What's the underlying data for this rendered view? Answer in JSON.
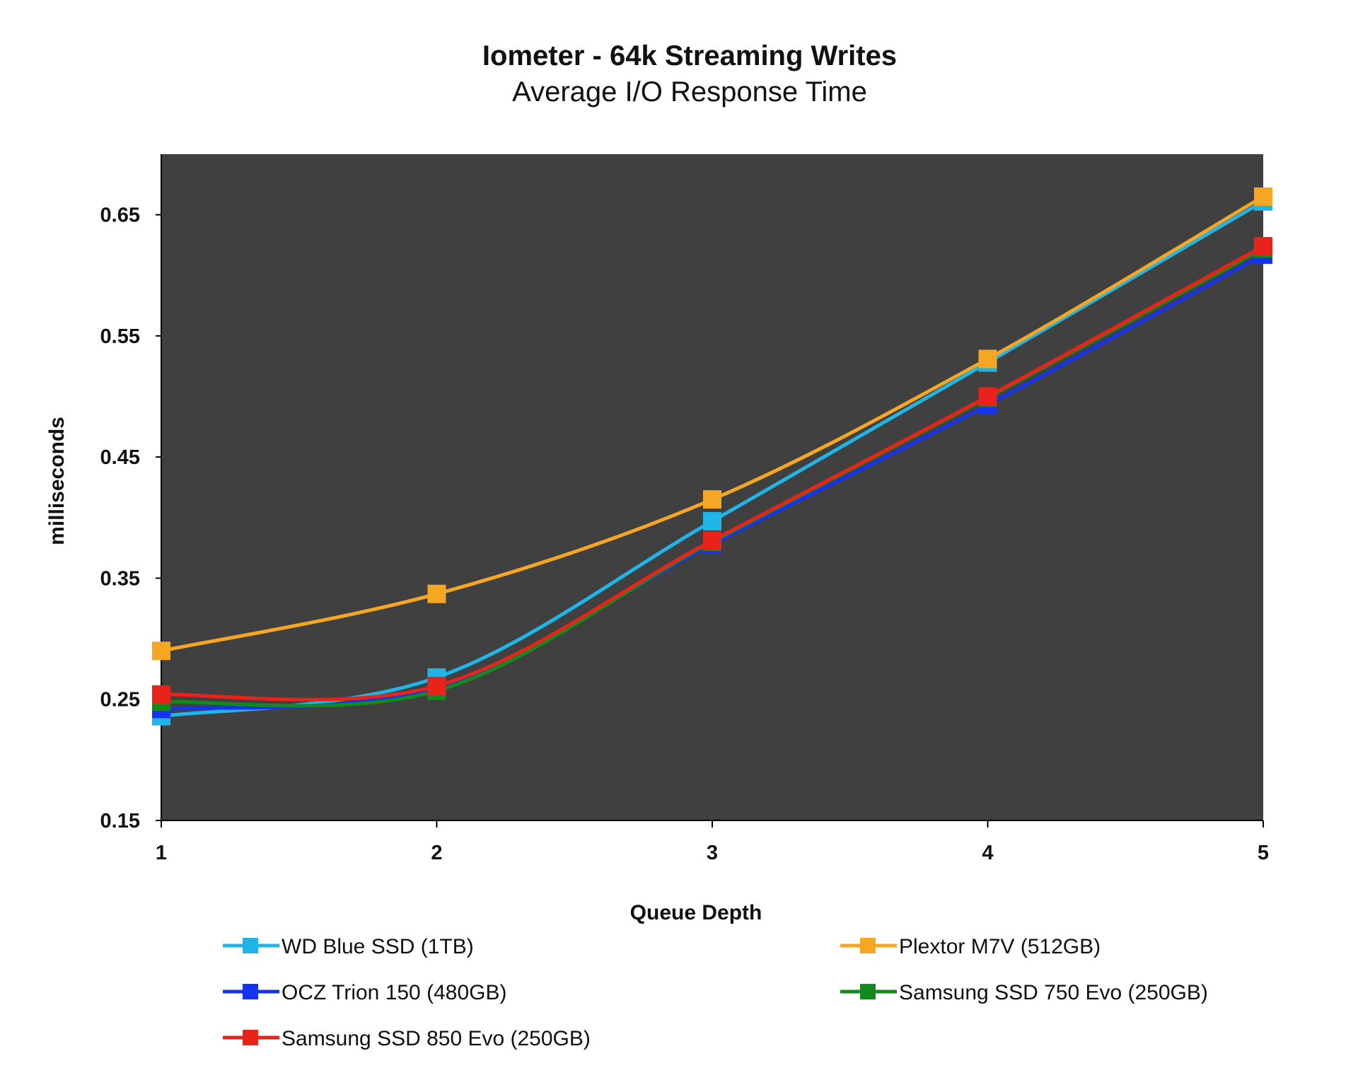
{
  "chart_data": {
    "type": "line",
    "title": "Iometer - 64k Streaming Writes",
    "subtitle": "Average I/O Response Time",
    "xlabel": "Queue Depth",
    "ylabel": "milliseconds",
    "x": [
      1,
      2,
      3,
      4,
      5
    ],
    "x_tick_labels": [
      "1",
      "2",
      "3",
      "4",
      "5"
    ],
    "ylim": [
      0.15,
      0.7
    ],
    "y_ticks": [
      0.15,
      0.25,
      0.35,
      0.45,
      0.55,
      0.65
    ],
    "y_tick_labels": [
      "0.15",
      "0.25",
      "0.35",
      "0.45",
      "0.55",
      "0.65"
    ],
    "plot_background": "#404040",
    "grid": false,
    "legend_position": "bottom",
    "series": [
      {
        "name": "WD Blue SSD (1TB)",
        "color": "#1fb5e6",
        "values": [
          0.236,
          0.268,
          0.397,
          0.528,
          0.661
        ]
      },
      {
        "name": "Plextor M7V (512GB)",
        "color": "#f5a623",
        "values": [
          0.29,
          0.337,
          0.415,
          0.531,
          0.665
        ]
      },
      {
        "name": "OCZ Trion 150 (480GB)",
        "color": "#1433f0",
        "values": [
          0.242,
          0.26,
          0.378,
          0.493,
          0.617
        ]
      },
      {
        "name": "Samsung SSD 750 Evo (250GB)",
        "color": "#128a1c",
        "values": [
          0.248,
          0.257,
          0.38,
          0.499,
          0.622
        ]
      },
      {
        "name": "Samsung SSD 850 Evo (250GB)",
        "color": "#e8231a",
        "values": [
          0.254,
          0.261,
          0.381,
          0.5,
          0.624
        ]
      }
    ]
  }
}
